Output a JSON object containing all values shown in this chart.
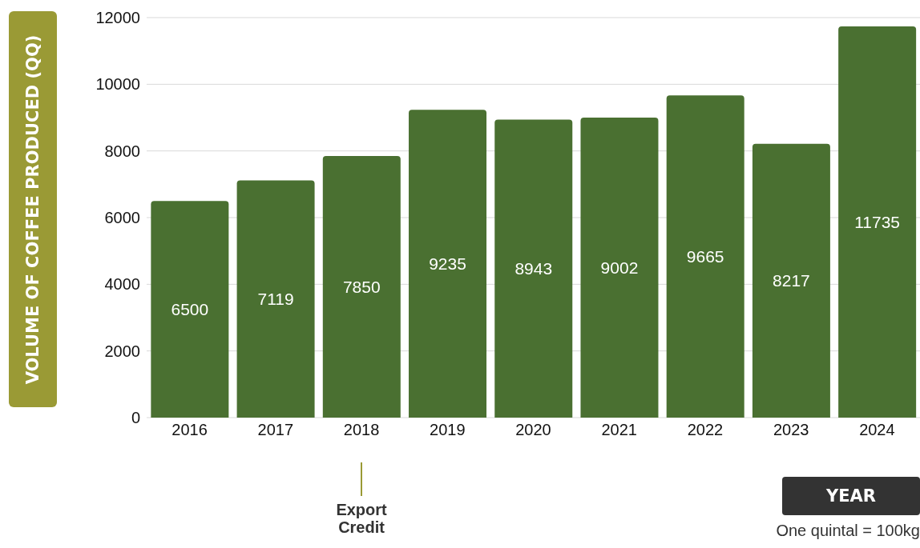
{
  "chart_data": {
    "type": "bar",
    "ylabel": "VOLUME OF COFFEE PRODUCED (QQ)",
    "xlabel": "YEAR",
    "categories": [
      "2016",
      "2017",
      "2018",
      "2019",
      "2020",
      "2021",
      "2022",
      "2023",
      "2024"
    ],
    "values": [
      6500,
      7119,
      7850,
      9235,
      8943,
      9002,
      9665,
      8217,
      11735
    ],
    "color": "#4a7031",
    "ylim": [
      0,
      12000
    ],
    "yticks": [
      0,
      2000,
      4000,
      6000,
      8000,
      10000,
      12000
    ],
    "grid": "y",
    "data_labels": true,
    "annotations": [
      "Export Credit",
      "One quintal = 100kg"
    ]
  }
}
